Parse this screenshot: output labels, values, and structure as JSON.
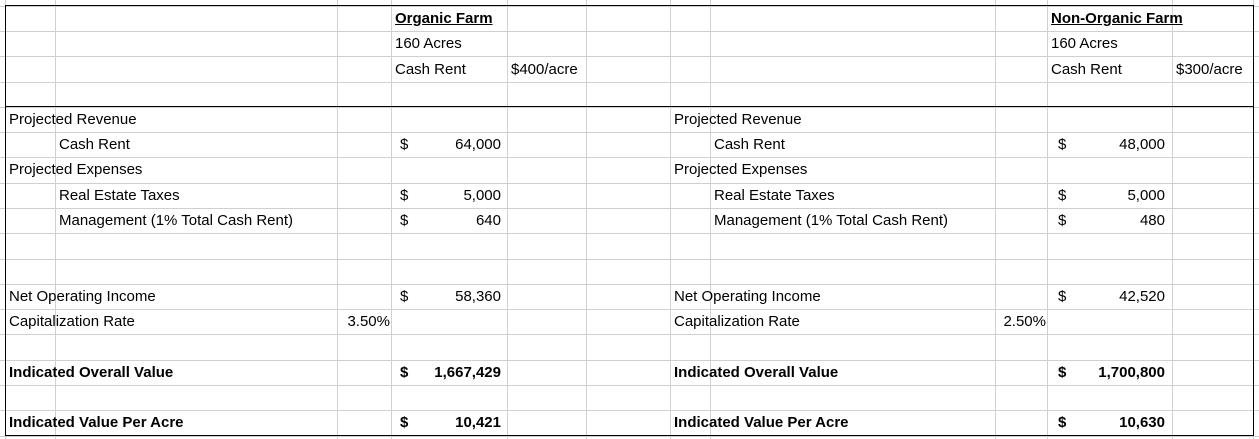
{
  "organic": {
    "title": "Organic Farm",
    "acres": "160 Acres",
    "cash_rent_label": "Cash Rent",
    "cash_rent_rate": "$400/acre",
    "projected_revenue": "Projected Revenue",
    "cash_rent": "Cash Rent",
    "cash_rent_value": "64,000",
    "projected_expenses": "Projected Expenses",
    "real_estate_taxes": "Real Estate Taxes",
    "real_estate_taxes_value": "5,000",
    "management": "Management (1% Total Cash Rent)",
    "management_value": "640",
    "net_operating_income": "Net Operating Income",
    "net_operating_income_value": "58,360",
    "capitalization_rate": "Capitalization Rate",
    "capitalization_rate_value": "3.50%",
    "indicated_overall_value": "Indicated Overall Value",
    "indicated_overall_value_value": "1,667,429",
    "indicated_value_per_acre": "Indicated Value Per Acre",
    "indicated_value_per_acre_value": "10,421"
  },
  "nonorganic": {
    "title": "Non-Organic Farm",
    "acres": "160 Acres",
    "cash_rent_label": "Cash Rent",
    "cash_rent_rate": "$300/acre",
    "projected_revenue": "Projected Revenue",
    "cash_rent": "Cash Rent",
    "cash_rent_value": "48,000",
    "projected_expenses": "Projected Expenses",
    "real_estate_taxes": "Real Estate Taxes",
    "real_estate_taxes_value": "5,000",
    "management": "Management (1% Total Cash Rent)",
    "management_value": "480",
    "net_operating_income": "Net Operating Income",
    "net_operating_income_value": "42,520",
    "capitalization_rate": "Capitalization Rate",
    "capitalization_rate_value": "2.50%",
    "indicated_overall_value": "Indicated Overall Value",
    "indicated_overall_value_value": "1,700,800",
    "indicated_value_per_acre": "Indicated Value Per Acre",
    "indicated_value_per_acre_value": "10,630"
  },
  "currency_symbol": "$"
}
